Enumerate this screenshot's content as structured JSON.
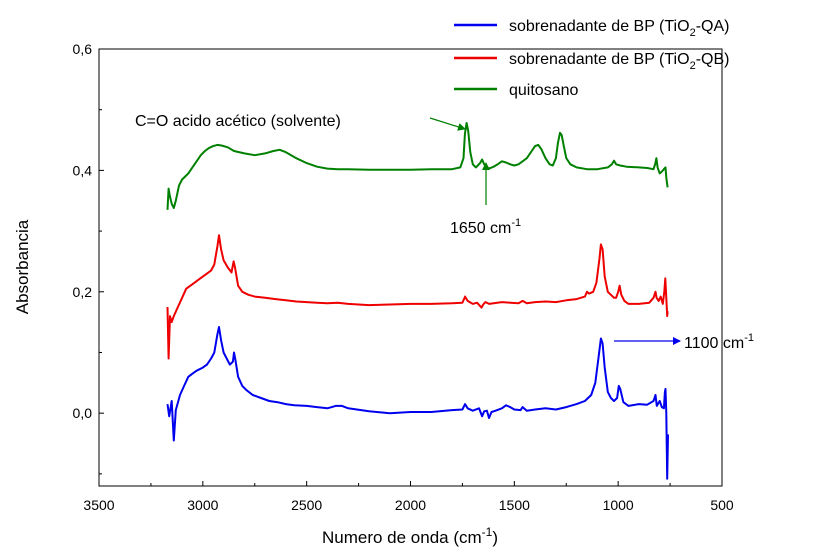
{
  "chart_data": {
    "type": "line",
    "xlabel": {
      "main": "Numero de onda (cm",
      "sup": "-1",
      "tail": ")"
    },
    "ylabel": "Absorbancia",
    "xlim": [
      3500,
      500
    ],
    "ylim": [
      -0.12,
      0.6
    ],
    "xticks": [
      "3500",
      "3000",
      "2500",
      "2000",
      "1500",
      "1000",
      "500"
    ],
    "xtick_values": [
      3500,
      3000,
      2500,
      2000,
      1500,
      1000,
      500
    ],
    "yticks": [
      "0,0",
      "0,2",
      "0,4",
      "0,6"
    ],
    "ytick_values": [
      0.0,
      0.2,
      0.4,
      0.6
    ],
    "legend_position": "top-right",
    "series": [
      {
        "legend": {
          "main": "sobrenadante de BP (TiO",
          "sub": "2",
          "tail": "-QA)"
        },
        "color": "#0000ee",
        "points": [
          [
            3170,
            0.015
          ],
          [
            3162,
            -0.005
          ],
          [
            3150,
            0.02
          ],
          [
            3140,
            -0.045
          ],
          [
            3130,
            0.005
          ],
          [
            3110,
            0.03
          ],
          [
            3090,
            0.045
          ],
          [
            3070,
            0.06
          ],
          [
            3050,
            0.065
          ],
          [
            3030,
            0.07
          ],
          [
            3000,
            0.075
          ],
          [
            2980,
            0.08
          ],
          [
            2960,
            0.09
          ],
          [
            2945,
            0.1
          ],
          [
            2930,
            0.13
          ],
          [
            2922,
            0.142
          ],
          [
            2912,
            0.12
          ],
          [
            2900,
            0.1
          ],
          [
            2885,
            0.09
          ],
          [
            2870,
            0.08
          ],
          [
            2855,
            0.085
          ],
          [
            2850,
            0.1
          ],
          [
            2843,
            0.088
          ],
          [
            2830,
            0.06
          ],
          [
            2810,
            0.045
          ],
          [
            2790,
            0.038
          ],
          [
            2760,
            0.03
          ],
          [
            2720,
            0.025
          ],
          [
            2680,
            0.02
          ],
          [
            2640,
            0.018
          ],
          [
            2600,
            0.015
          ],
          [
            2560,
            0.013
          ],
          [
            2500,
            0.012
          ],
          [
            2450,
            0.01
          ],
          [
            2400,
            0.008
          ],
          [
            2360,
            0.012
          ],
          [
            2330,
            0.012
          ],
          [
            2300,
            0.008
          ],
          [
            2200,
            0.003
          ],
          [
            2100,
            0.0
          ],
          [
            2000,
            0.002
          ],
          [
            1900,
            0.002
          ],
          [
            1800,
            0.005
          ],
          [
            1750,
            0.006
          ],
          [
            1737,
            0.015
          ],
          [
            1725,
            0.008
          ],
          [
            1700,
            0.004
          ],
          [
            1670,
            0.008
          ],
          [
            1655,
            -0.005
          ],
          [
            1645,
            0.003
          ],
          [
            1632,
            0.004
          ],
          [
            1622,
            -0.008
          ],
          [
            1610,
            0.002
          ],
          [
            1590,
            0.004
          ],
          [
            1560,
            0.008
          ],
          [
            1540,
            0.013
          ],
          [
            1520,
            0.01
          ],
          [
            1500,
            0.006
          ],
          [
            1470,
            0.005
          ],
          [
            1460,
            0.01
          ],
          [
            1440,
            0.004
          ],
          [
            1400,
            0.006
          ],
          [
            1350,
            0.008
          ],
          [
            1300,
            0.006
          ],
          [
            1250,
            0.01
          ],
          [
            1200,
            0.015
          ],
          [
            1160,
            0.02
          ],
          [
            1130,
            0.03
          ],
          [
            1110,
            0.05
          ],
          [
            1095,
            0.09
          ],
          [
            1083,
            0.123
          ],
          [
            1075,
            0.115
          ],
          [
            1065,
            0.075
          ],
          [
            1050,
            0.035
          ],
          [
            1035,
            0.025
          ],
          [
            1020,
            0.02
          ],
          [
            1005,
            0.025
          ],
          [
            997,
            0.045
          ],
          [
            990,
            0.04
          ],
          [
            975,
            0.018
          ],
          [
            950,
            0.012
          ],
          [
            900,
            0.015
          ],
          [
            860,
            0.014
          ],
          [
            830,
            0.02
          ],
          [
            820,
            0.03
          ],
          [
            814,
            0.012
          ],
          [
            800,
            0.02
          ],
          [
            790,
            0.01
          ],
          [
            780,
            0.008
          ],
          [
            775,
            0.035
          ],
          [
            772,
            0.04
          ],
          [
            768,
            0.0
          ],
          [
            764,
            -0.108
          ],
          [
            760,
            -0.035
          ]
        ]
      },
      {
        "legend": {
          "main": "sobrenadante de BP (TiO",
          "sub": "2",
          "tail": "-QB)"
        },
        "color": "#ee0000",
        "points": [
          [
            3170,
            0.175
          ],
          [
            3165,
            0.09
          ],
          [
            3158,
            0.16
          ],
          [
            3150,
            0.15
          ],
          [
            3140,
            0.16
          ],
          [
            3120,
            0.175
          ],
          [
            3100,
            0.19
          ],
          [
            3080,
            0.205
          ],
          [
            3060,
            0.21
          ],
          [
            3040,
            0.215
          ],
          [
            3020,
            0.22
          ],
          [
            3000,
            0.225
          ],
          [
            2980,
            0.23
          ],
          [
            2960,
            0.235
          ],
          [
            2945,
            0.245
          ],
          [
            2930,
            0.275
          ],
          [
            2922,
            0.293
          ],
          [
            2912,
            0.27
          ],
          [
            2900,
            0.252
          ],
          [
            2880,
            0.24
          ],
          [
            2862,
            0.232
          ],
          [
            2852,
            0.25
          ],
          [
            2845,
            0.24
          ],
          [
            2830,
            0.21
          ],
          [
            2810,
            0.2
          ],
          [
            2780,
            0.195
          ],
          [
            2750,
            0.192
          ],
          [
            2700,
            0.19
          ],
          [
            2650,
            0.188
          ],
          [
            2600,
            0.186
          ],
          [
            2550,
            0.184
          ],
          [
            2500,
            0.183
          ],
          [
            2450,
            0.182
          ],
          [
            2400,
            0.181
          ],
          [
            2350,
            0.182
          ],
          [
            2300,
            0.18
          ],
          [
            2200,
            0.178
          ],
          [
            2100,
            0.179
          ],
          [
            2000,
            0.18
          ],
          [
            1900,
            0.18
          ],
          [
            1800,
            0.181
          ],
          [
            1750,
            0.182
          ],
          [
            1737,
            0.192
          ],
          [
            1725,
            0.185
          ],
          [
            1700,
            0.18
          ],
          [
            1680,
            0.182
          ],
          [
            1658,
            0.174
          ],
          [
            1650,
            0.179
          ],
          [
            1640,
            0.183
          ],
          [
            1620,
            0.18
          ],
          [
            1600,
            0.181
          ],
          [
            1560,
            0.183
          ],
          [
            1520,
            0.182
          ],
          [
            1480,
            0.181
          ],
          [
            1460,
            0.185
          ],
          [
            1440,
            0.181
          ],
          [
            1400,
            0.183
          ],
          [
            1350,
            0.184
          ],
          [
            1300,
            0.183
          ],
          [
            1250,
            0.186
          ],
          [
            1200,
            0.188
          ],
          [
            1160,
            0.192
          ],
          [
            1150,
            0.2
          ],
          [
            1140,
            0.197
          ],
          [
            1120,
            0.2
          ],
          [
            1105,
            0.215
          ],
          [
            1090,
            0.255
          ],
          [
            1083,
            0.278
          ],
          [
            1075,
            0.27
          ],
          [
            1065,
            0.225
          ],
          [
            1050,
            0.2
          ],
          [
            1035,
            0.195
          ],
          [
            1020,
            0.19
          ],
          [
            1010,
            0.19
          ],
          [
            1000,
            0.2
          ],
          [
            993,
            0.21
          ],
          [
            985,
            0.195
          ],
          [
            970,
            0.185
          ],
          [
            950,
            0.18
          ],
          [
            900,
            0.18
          ],
          [
            850,
            0.182
          ],
          [
            830,
            0.19
          ],
          [
            820,
            0.2
          ],
          [
            815,
            0.19
          ],
          [
            805,
            0.185
          ],
          [
            795,
            0.192
          ],
          [
            785,
            0.18
          ],
          [
            778,
            0.2
          ],
          [
            773,
            0.222
          ],
          [
            768,
            0.19
          ],
          [
            764,
            0.16
          ],
          [
            762,
            0.168
          ]
        ]
      },
      {
        "legend": {
          "main": "quitosano",
          "sub": "",
          "tail": ""
        },
        "color": "#008000",
        "points": [
          [
            3170,
            0.335
          ],
          [
            3165,
            0.37
          ],
          [
            3160,
            0.36
          ],
          [
            3150,
            0.345
          ],
          [
            3140,
            0.338
          ],
          [
            3130,
            0.35
          ],
          [
            3115,
            0.375
          ],
          [
            3100,
            0.385
          ],
          [
            3085,
            0.39
          ],
          [
            3070,
            0.395
          ],
          [
            3050,
            0.405
          ],
          [
            3030,
            0.415
          ],
          [
            3010,
            0.425
          ],
          [
            2990,
            0.432
          ],
          [
            2970,
            0.437
          ],
          [
            2950,
            0.44
          ],
          [
            2930,
            0.442
          ],
          [
            2910,
            0.441
          ],
          [
            2880,
            0.438
          ],
          [
            2850,
            0.432
          ],
          [
            2800,
            0.428
          ],
          [
            2750,
            0.425
          ],
          [
            2700,
            0.428
          ],
          [
            2660,
            0.432
          ],
          [
            2630,
            0.434
          ],
          [
            2600,
            0.43
          ],
          [
            2550,
            0.42
          ],
          [
            2500,
            0.412
          ],
          [
            2450,
            0.406
          ],
          [
            2400,
            0.403
          ],
          [
            2350,
            0.402
          ],
          [
            2300,
            0.402
          ],
          [
            2200,
            0.401
          ],
          [
            2100,
            0.401
          ],
          [
            2000,
            0.401
          ],
          [
            1900,
            0.402
          ],
          [
            1800,
            0.402
          ],
          [
            1760,
            0.405
          ],
          [
            1745,
            0.42
          ],
          [
            1738,
            0.46
          ],
          [
            1730,
            0.478
          ],
          [
            1722,
            0.465
          ],
          [
            1712,
            0.43
          ],
          [
            1700,
            0.41
          ],
          [
            1685,
            0.405
          ],
          [
            1665,
            0.412
          ],
          [
            1655,
            0.418
          ],
          [
            1645,
            0.41
          ],
          [
            1630,
            0.403
          ],
          [
            1615,
            0.404
          ],
          [
            1600,
            0.406
          ],
          [
            1580,
            0.41
          ],
          [
            1560,
            0.415
          ],
          [
            1540,
            0.413
          ],
          [
            1520,
            0.41
          ],
          [
            1500,
            0.408
          ],
          [
            1480,
            0.41
          ],
          [
            1460,
            0.415
          ],
          [
            1440,
            0.42
          ],
          [
            1420,
            0.43
          ],
          [
            1400,
            0.44
          ],
          [
            1385,
            0.442
          ],
          [
            1370,
            0.435
          ],
          [
            1350,
            0.42
          ],
          [
            1330,
            0.41
          ],
          [
            1315,
            0.408
          ],
          [
            1300,
            0.42
          ],
          [
            1290,
            0.445
          ],
          [
            1280,
            0.462
          ],
          [
            1272,
            0.458
          ],
          [
            1262,
            0.44
          ],
          [
            1250,
            0.42
          ],
          [
            1230,
            0.41
          ],
          [
            1200,
            0.405
          ],
          [
            1150,
            0.402
          ],
          [
            1100,
            0.402
          ],
          [
            1050,
            0.405
          ],
          [
            1030,
            0.41
          ],
          [
            1020,
            0.416
          ],
          [
            1010,
            0.41
          ],
          [
            990,
            0.408
          ],
          [
            960,
            0.406
          ],
          [
            900,
            0.405
          ],
          [
            860,
            0.404
          ],
          [
            830,
            0.402
          ],
          [
            822,
            0.41
          ],
          [
            816,
            0.42
          ],
          [
            810,
            0.405
          ],
          [
            800,
            0.395
          ],
          [
            790,
            0.398
          ],
          [
            780,
            0.402
          ],
          [
            772,
            0.405
          ],
          [
            768,
            0.388
          ],
          [
            762,
            0.372
          ]
        ]
      }
    ],
    "annotations": {
      "co_label": "C=O acido acético (solvente)",
      "peak1650_main": "1650 cm",
      "peak1650_sup": "-1",
      "peak1100_main": "1100 cm",
      "peak1100_sup": "-1"
    }
  }
}
